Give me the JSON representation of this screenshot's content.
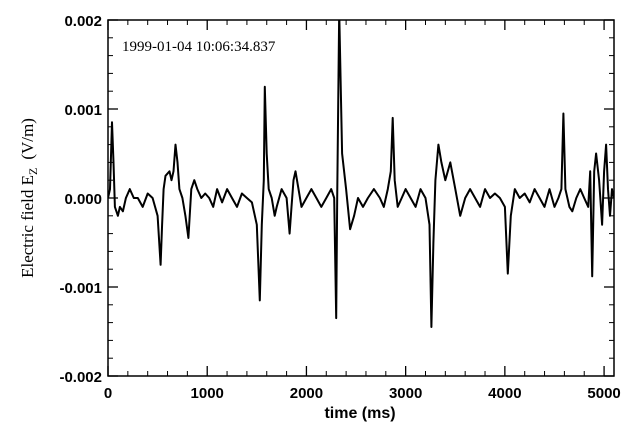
{
  "chart_data": {
    "type": "line",
    "title": "",
    "annotation": "1999-01-04 10:06:34.837",
    "xlabel": "time (ms)",
    "ylabel": {
      "main": "Electric field E",
      "sub": "Z",
      "unit": "(V/m)"
    },
    "xlim": [
      0,
      5100
    ],
    "ylim": [
      -0.002,
      0.002
    ],
    "xticks": [
      0,
      1000,
      2000,
      3000,
      4000,
      5000
    ],
    "xtick_labels": [
      "0",
      "1000",
      "2000",
      "3000",
      "4000",
      "5000"
    ],
    "yticks": [
      -0.002,
      -0.001,
      0.0,
      0.001,
      0.002
    ],
    "ytick_labels": [
      "-0.002",
      "-0.001",
      "0.000",
      "0.001",
      "0.002"
    ],
    "grid": false,
    "line_color": "#000000",
    "series": [
      {
        "name": "",
        "x": [
          0,
          20,
          40,
          55,
          70,
          85,
          100,
          120,
          150,
          180,
          220,
          260,
          300,
          350,
          400,
          450,
          500,
          530,
          545,
          560,
          580,
          620,
          640,
          660,
          680,
          700,
          720,
          750,
          780,
          810,
          840,
          870,
          900,
          940,
          980,
          1020,
          1060,
          1100,
          1150,
          1200,
          1250,
          1300,
          1350,
          1400,
          1450,
          1500,
          1530,
          1550,
          1570,
          1580,
          1600,
          1620,
          1650,
          1680,
          1700,
          1750,
          1800,
          1830,
          1850,
          1870,
          1890,
          1920,
          1950,
          2000,
          2050,
          2100,
          2150,
          2200,
          2250,
          2280,
          2300,
          2310,
          2330,
          2360,
          2400,
          2440,
          2480,
          2520,
          2570,
          2620,
          2680,
          2740,
          2780,
          2820,
          2850,
          2870,
          2890,
          2920,
          2960,
          3000,
          3050,
          3100,
          3150,
          3200,
          3240,
          3260,
          3280,
          3300,
          3330,
          3360,
          3400,
          3450,
          3500,
          3550,
          3600,
          3650,
          3700,
          3750,
          3800,
          3850,
          3900,
          3950,
          4000,
          4030,
          4060,
          4100,
          4150,
          4200,
          4250,
          4300,
          4350,
          4400,
          4450,
          4500,
          4540,
          4570,
          4590,
          4610,
          4630,
          4650,
          4680,
          4720,
          4760,
          4800,
          4840,
          4860,
          4880,
          4900,
          4920,
          4950,
          4980,
          5000,
          5020,
          5040,
          5060,
          5080,
          5100
        ],
        "y": [
          0.0,
          0.0001,
          0.00085,
          0.0004,
          -0.0001,
          -0.00015,
          -0.0002,
          -0.0001,
          -0.00015,
          0.0,
          0.0001,
          0.0,
          0.0,
          -0.0001,
          5e-05,
          0.0,
          -0.0002,
          -0.00075,
          -0.0003,
          0.0001,
          0.00025,
          0.0003,
          0.0002,
          0.0003,
          0.0006,
          0.0004,
          0.0001,
          0.0,
          -0.0002,
          -0.00045,
          0.0001,
          0.0002,
          0.0001,
          0.0,
          5e-05,
          0.0,
          -0.0001,
          0.0001,
          -5e-05,
          0.0001,
          0.0,
          -0.0001,
          5e-05,
          0.0,
          -5e-05,
          -0.0003,
          -0.00115,
          -0.0003,
          0.0002,
          0.00125,
          0.0005,
          0.0001,
          0.0,
          -0.0002,
          -0.0001,
          0.0001,
          0.0,
          -0.0004,
          -0.0001,
          0.0002,
          0.0003,
          0.0001,
          -0.0001,
          0.0,
          0.0001,
          0.0,
          -0.0001,
          0.0,
          0.0001,
          0.0,
          -0.00135,
          0.0,
          0.0021,
          0.0005,
          0.0001,
          -0.00035,
          -0.0002,
          0.0,
          -0.0001,
          0.0,
          0.0001,
          0.0,
          -0.0001,
          0.0001,
          0.0003,
          0.0009,
          0.0002,
          -0.0001,
          0.0,
          0.0001,
          0.0,
          -0.0001,
          0.0001,
          0.0,
          -0.0003,
          -0.00145,
          -0.0005,
          0.0002,
          0.0006,
          0.0004,
          0.0002,
          0.0004,
          0.0001,
          -0.0002,
          0.0,
          0.0001,
          0.0,
          -0.0001,
          0.0001,
          0.0,
          5e-05,
          0.0,
          -0.0001,
          -0.00085,
          -0.0002,
          0.0001,
          0.0,
          5e-05,
          -5e-05,
          0.0001,
          0.0,
          -0.0001,
          0.0001,
          -0.0001,
          0.0,
          0.0001,
          0.00095,
          0.0001,
          0.0,
          -0.0001,
          -0.00015,
          0.0,
          0.0001,
          0.0,
          -0.0001,
          0.0003,
          -0.00088,
          0.0003,
          0.0005,
          0.0002,
          -0.0003,
          0.0003,
          0.0006,
          0.0001,
          -0.0002,
          0.0001,
          0.0
        ]
      }
    ]
  }
}
